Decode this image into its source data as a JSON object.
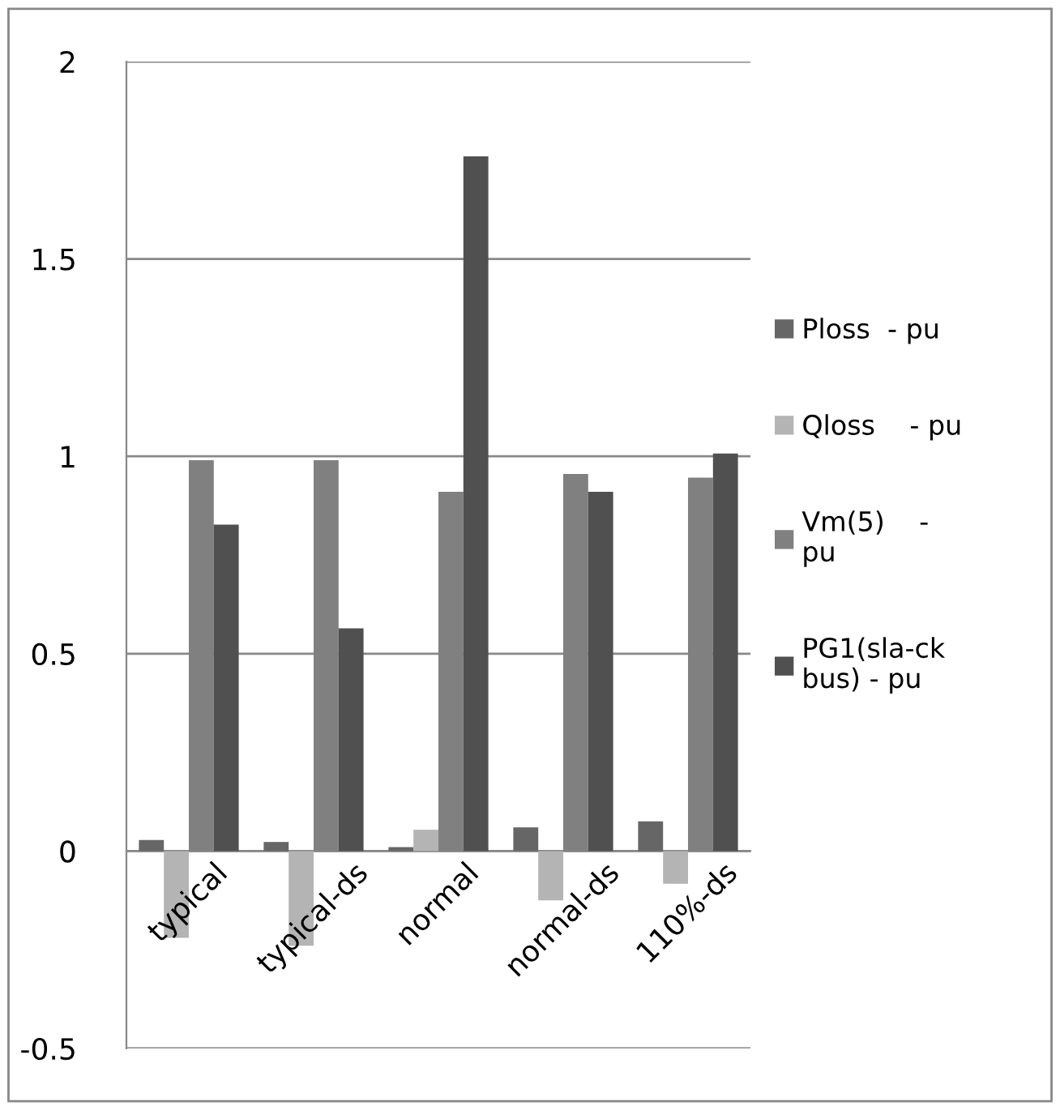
{
  "chart_data": {
    "type": "bar",
    "categories": [
      "typical",
      "typical-ds",
      "normal",
      "normal-ds",
      "110%-ds"
    ],
    "series": [
      {
        "name": "Ploss  - pu",
        "color": "#666666",
        "values": [
          0.028,
          0.023,
          0.01,
          0.06,
          0.075
        ]
      },
      {
        "name": "Qloss    - pu",
        "color": "#b4b4b4",
        "values": [
          -0.22,
          -0.24,
          0.054,
          -0.125,
          -0.083
        ]
      },
      {
        "name": "Vm(5)    -\npu",
        "color": "#808080",
        "values": [
          0.99,
          0.99,
          0.91,
          0.955,
          0.946
        ]
      },
      {
        "name": "PG1(sla-ck\nbus) - pu",
        "color": "#505050",
        "values": [
          0.827,
          0.564,
          1.76,
          0.91,
          1.007
        ]
      }
    ],
    "ylim": [
      -0.5,
      2
    ],
    "yticks": [
      -0.5,
      0,
      0.5,
      1,
      1.5,
      2
    ],
    "grid": "y",
    "legend": "right"
  }
}
